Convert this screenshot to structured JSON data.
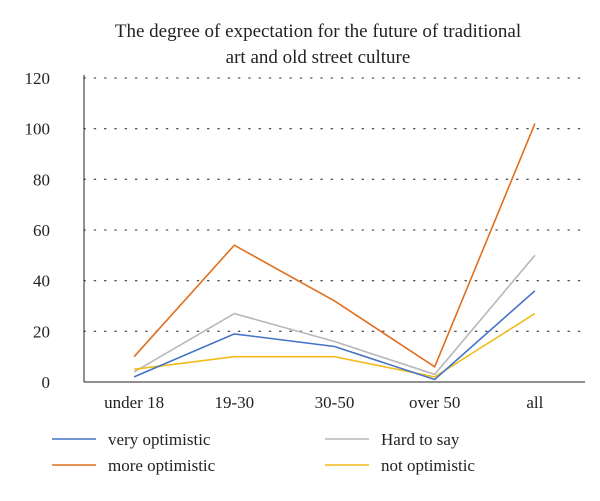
{
  "chart_data": {
    "type": "line",
    "title_lines": [
      "The degree of expectation for the future of traditional",
      "art and old street culture"
    ],
    "categories": [
      "under 18",
      "19-30",
      "30-50",
      "over 50",
      "all"
    ],
    "ylim": [
      0,
      120
    ],
    "yticks": [
      0,
      20,
      40,
      60,
      80,
      100,
      120
    ],
    "grid": "horizontal-dotted",
    "legend_position": "bottom",
    "series": [
      {
        "name": "very optimistic",
        "color": "#4472c4",
        "values": [
          2,
          19,
          14,
          1,
          36
        ]
      },
      {
        "name": "more optimistic",
        "color": "#e07020",
        "values": [
          10,
          54,
          32,
          6,
          102
        ]
      },
      {
        "name": "Hard to say",
        "color": "#b8b8b8",
        "values": [
          4,
          27,
          16,
          3,
          50
        ]
      },
      {
        "name": "not optimistic",
        "color": "#f2bc1a",
        "values": [
          5,
          10,
          10,
          2,
          27
        ]
      }
    ]
  }
}
